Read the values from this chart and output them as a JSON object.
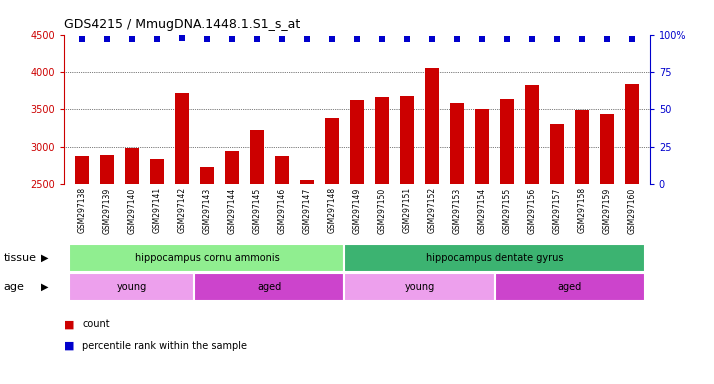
{
  "title": "GDS4215 / MmugDNA.1448.1.S1_s_at",
  "samples": [
    "GSM297138",
    "GSM297139",
    "GSM297140",
    "GSM297141",
    "GSM297142",
    "GSM297143",
    "GSM297144",
    "GSM297145",
    "GSM297146",
    "GSM297147",
    "GSM297148",
    "GSM297149",
    "GSM297150",
    "GSM297151",
    "GSM297152",
    "GSM297153",
    "GSM297154",
    "GSM297155",
    "GSM297156",
    "GSM297157",
    "GSM297158",
    "GSM297159",
    "GSM297160"
  ],
  "counts": [
    2880,
    2890,
    2990,
    2840,
    3720,
    2730,
    2940,
    3230,
    2880,
    2560,
    3380,
    3630,
    3670,
    3680,
    4060,
    3580,
    3510,
    3640,
    3820,
    3310,
    3490,
    3440,
    3840
  ],
  "percentile_ranks": [
    97,
    97,
    97,
    97,
    98,
    97,
    97,
    97,
    97,
    97,
    97,
    97,
    97,
    97,
    97,
    97,
    97,
    97,
    97,
    97,
    97,
    97,
    97
  ],
  "ylim_left": [
    2500,
    4500
  ],
  "ylim_right": [
    0,
    100
  ],
  "yticks_left": [
    2500,
    3000,
    3500,
    4000,
    4500
  ],
  "yticks_right": [
    0,
    25,
    50,
    75,
    100
  ],
  "bar_color": "#CC0000",
  "dot_color": "#0000CC",
  "bar_width": 0.55,
  "tissue_groups": [
    {
      "label": "hippocampus cornu ammonis",
      "start": 0,
      "end": 11,
      "color": "#90EE90"
    },
    {
      "label": "hippocampus dentate gyrus",
      "start": 11,
      "end": 23,
      "color": "#3CB371"
    }
  ],
  "age_groups": [
    {
      "label": "young",
      "start": 0,
      "end": 5,
      "color": "#EDA0ED"
    },
    {
      "label": "aged",
      "start": 5,
      "end": 11,
      "color": "#CC44CC"
    },
    {
      "label": "young",
      "start": 11,
      "end": 17,
      "color": "#EDA0ED"
    },
    {
      "label": "aged",
      "start": 17,
      "end": 23,
      "color": "#CC44CC"
    }
  ],
  "xticklabel_bg": "#D8D8D8",
  "plot_bg": "#FFFFFF",
  "fig_bg": "#FFFFFF",
  "tissue_label": "tissue",
  "age_label": "age",
  "legend_count_color": "#CC0000",
  "legend_dot_color": "#0000CC"
}
